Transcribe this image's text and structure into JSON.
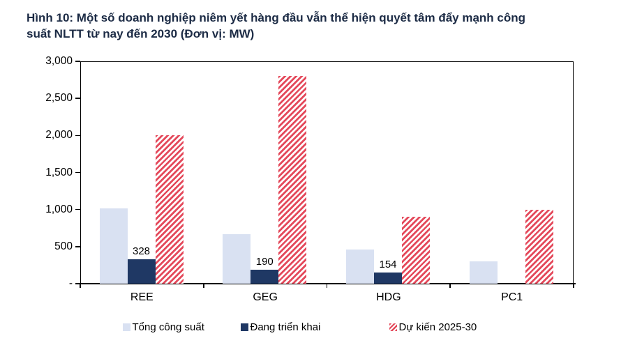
{
  "title": {
    "line1": "Hình 10: Một số doanh nghiệp niêm yết hàng đầu vẫn thể hiện quyết tâm đẩy mạnh công",
    "line2": "suất NLTT từ nay đến 2030 (Đơn vị: MW)"
  },
  "colors": {
    "title": "#1c2b45",
    "axis": "#000000",
    "series_total": "#d9e1f2",
    "series_inprogress": "#1f3864",
    "series_planned": "#e4495b"
  },
  "chart_data": {
    "type": "bar",
    "title": "Hình 10: Một số doanh nghiệp niêm yết hàng đầu vẫn thể hiện quyết tâm đẩy mạnh công suất NLTT từ nay đến 2030 (Đơn vị: MW)",
    "unit": "MW",
    "categories": [
      "REE",
      "GEG",
      "HDG",
      "PC1"
    ],
    "series": [
      {
        "name": "Tổng công suất",
        "values": [
          1020,
          670,
          460,
          300
        ],
        "labels": [
          "",
          "",
          "",
          ""
        ]
      },
      {
        "name": "Đang triển khai",
        "values": [
          328,
          190,
          154,
          0
        ],
        "labels": [
          "328",
          "190",
          "154",
          ""
        ]
      },
      {
        "name": "Dự kiến 2025-30",
        "values": [
          2000,
          2800,
          900,
          1000
        ],
        "labels": [
          "",
          "",
          "",
          ""
        ]
      }
    ],
    "ylim": [
      0,
      3000
    ],
    "ytick_interval": 500,
    "ytick_labels": [
      "3,000",
      "2,500",
      "2,000",
      "1,500",
      "1,000",
      "500",
      "-"
    ],
    "grid": false,
    "legend_position": "bottom"
  },
  "legend": {
    "items": [
      {
        "label": "Tổng công suất"
      },
      {
        "label": "Đang triển khai"
      },
      {
        "label": "Dự kiến 2025-30"
      }
    ]
  }
}
